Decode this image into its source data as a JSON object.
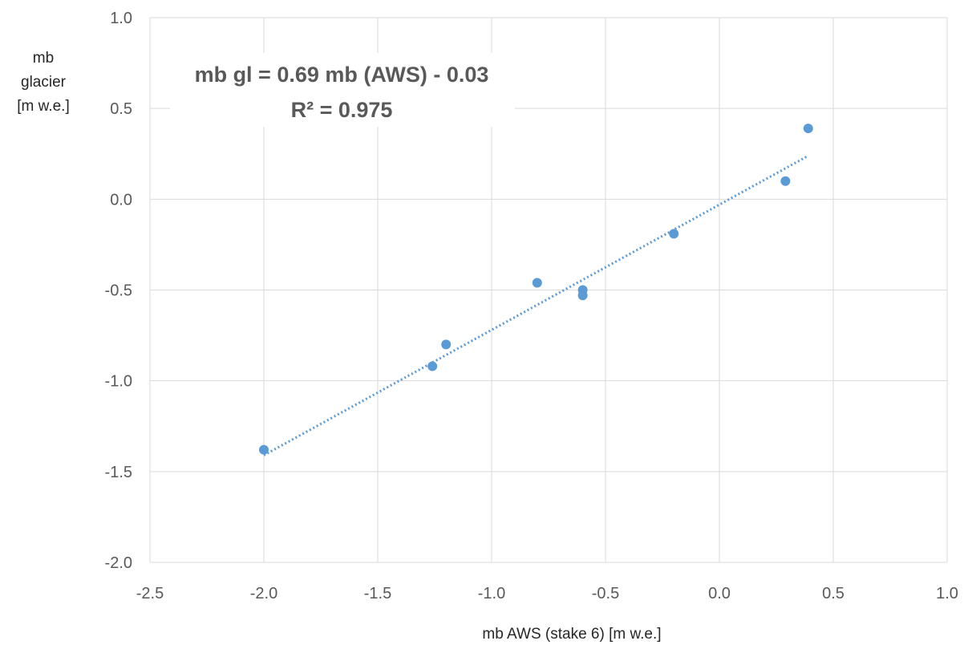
{
  "chart_data": {
    "type": "scatter",
    "title": "",
    "xlabel": "mb AWS (stake 6) [m w.e.]",
    "ylabel": [
      "mb",
      "glacier",
      "[m w.e.]"
    ],
    "xlim": [
      -2.5,
      1.0
    ],
    "ylim": [
      -2.0,
      1.0
    ],
    "x_ticks": [
      "-2.5",
      "-2.0",
      "-1.5",
      "-1.0",
      "-0.5",
      "0.0",
      "0.5",
      "1.0"
    ],
    "y_ticks": [
      "1.0",
      "0.5",
      "0.0",
      "-0.5",
      "-1.0",
      "-1.5",
      "-2.0"
    ],
    "grid": true,
    "series": [
      {
        "color": "#5B9BD5",
        "points": [
          {
            "x": -2.0,
            "y": -1.38
          },
          {
            "x": -1.26,
            "y": -0.92
          },
          {
            "x": -1.2,
            "y": -0.8
          },
          {
            "x": -0.8,
            "y": -0.46
          },
          {
            "x": -0.6,
            "y": -0.5
          },
          {
            "x": -0.6,
            "y": -0.53
          },
          {
            "x": -0.2,
            "y": -0.19
          },
          {
            "x": 0.29,
            "y": 0.1
          },
          {
            "x": 0.39,
            "y": 0.39
          }
        ]
      }
    ],
    "trendline": {
      "type": "linear",
      "slope": 0.69,
      "intercept": -0.03,
      "x_range": [
        -2.0,
        0.39
      ],
      "style": "dotted",
      "color": "#5B9BD5"
    },
    "annotation": {
      "line1": "mb gl = 0.69 mb (AWS) - 0.03",
      "line2": "R² = 0.975"
    }
  }
}
